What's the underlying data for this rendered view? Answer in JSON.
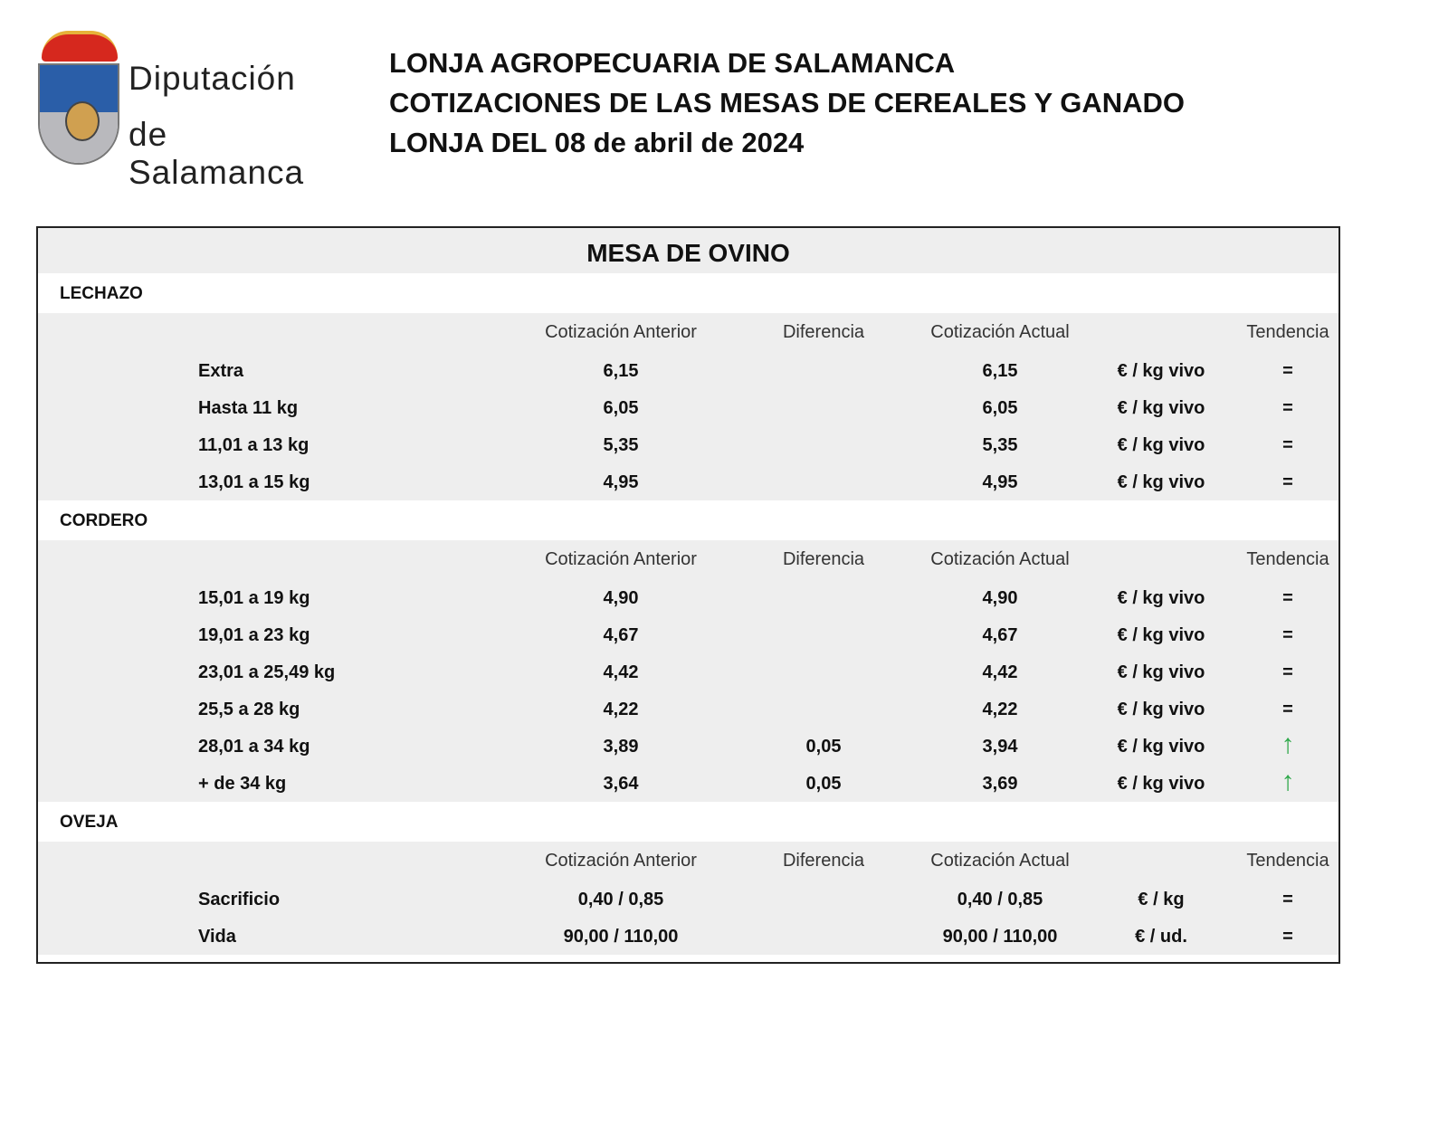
{
  "logo": {
    "line1": "Diputación",
    "line2": "de Salamanca"
  },
  "header": {
    "line1": "LONJA AGROPECUARIA DE SALAMANCA",
    "line2": "COTIZACIONES DE LAS MESAS DE CEREALES Y GANADO",
    "line3": "LONJA DEL 08 de abril de 2024"
  },
  "table": {
    "title": "MESA DE OVINO",
    "columns": [
      "Cotización Anterior",
      "Diferencia",
      "Cotización Actual",
      "Tendencia"
    ],
    "colors": {
      "up": "#2ea84a",
      "band": "#eeeeee"
    },
    "sections": [
      {
        "name": "LECHAZO",
        "rows": [
          {
            "label": "Extra",
            "anterior": "6,15",
            "diferencia": "",
            "actual": "6,15",
            "unit": "€ / kg vivo",
            "tendencia": "="
          },
          {
            "label": "Hasta 11 kg",
            "anterior": "6,05",
            "diferencia": "",
            "actual": "6,05",
            "unit": "€ / kg vivo",
            "tendencia": "="
          },
          {
            "label": "11,01 a 13 kg",
            "anterior": "5,35",
            "diferencia": "",
            "actual": "5,35",
            "unit": "€ / kg vivo",
            "tendencia": "="
          },
          {
            "label": "13,01 a 15 kg",
            "anterior": "4,95",
            "diferencia": "",
            "actual": "4,95",
            "unit": "€ / kg vivo",
            "tendencia": "="
          }
        ]
      },
      {
        "name": "CORDERO",
        "rows": [
          {
            "label": "15,01 a 19 kg",
            "anterior": "4,90",
            "diferencia": "",
            "actual": "4,90",
            "unit": "€ / kg vivo",
            "tendencia": "="
          },
          {
            "label": "19,01 a 23 kg",
            "anterior": "4,67",
            "diferencia": "",
            "actual": "4,67",
            "unit": "€ / kg vivo",
            "tendencia": "="
          },
          {
            "label": "23,01 a 25,49 kg",
            "anterior": "4,42",
            "diferencia": "",
            "actual": "4,42",
            "unit": "€ / kg vivo",
            "tendencia": "="
          },
          {
            "label": "25,5 a 28 kg",
            "anterior": "4,22",
            "diferencia": "",
            "actual": "4,22",
            "unit": "€ / kg vivo",
            "tendencia": "="
          },
          {
            "label": "28,01 a 34 kg",
            "anterior": "3,89",
            "diferencia": "0,05",
            "actual": "3,94",
            "unit": "€ / kg vivo",
            "tendencia": "up-arrow-icon"
          },
          {
            "label": "+ de 34 kg",
            "anterior": "3,64",
            "diferencia": "0,05",
            "actual": "3,69",
            "unit": "€ / kg vivo",
            "tendencia": "up-arrow-icon"
          }
        ]
      },
      {
        "name": "OVEJA",
        "rows": [
          {
            "label": "Sacrificio",
            "anterior": "0,40 / 0,85",
            "diferencia": "",
            "actual": "0,40 / 0,85",
            "unit": "€ / kg",
            "tendencia": "="
          },
          {
            "label": "Vida",
            "anterior": "90,00 / 110,00",
            "diferencia": "",
            "actual": "90,00 / 110,00",
            "unit": "€ / ud.",
            "tendencia": "="
          }
        ]
      }
    ]
  }
}
